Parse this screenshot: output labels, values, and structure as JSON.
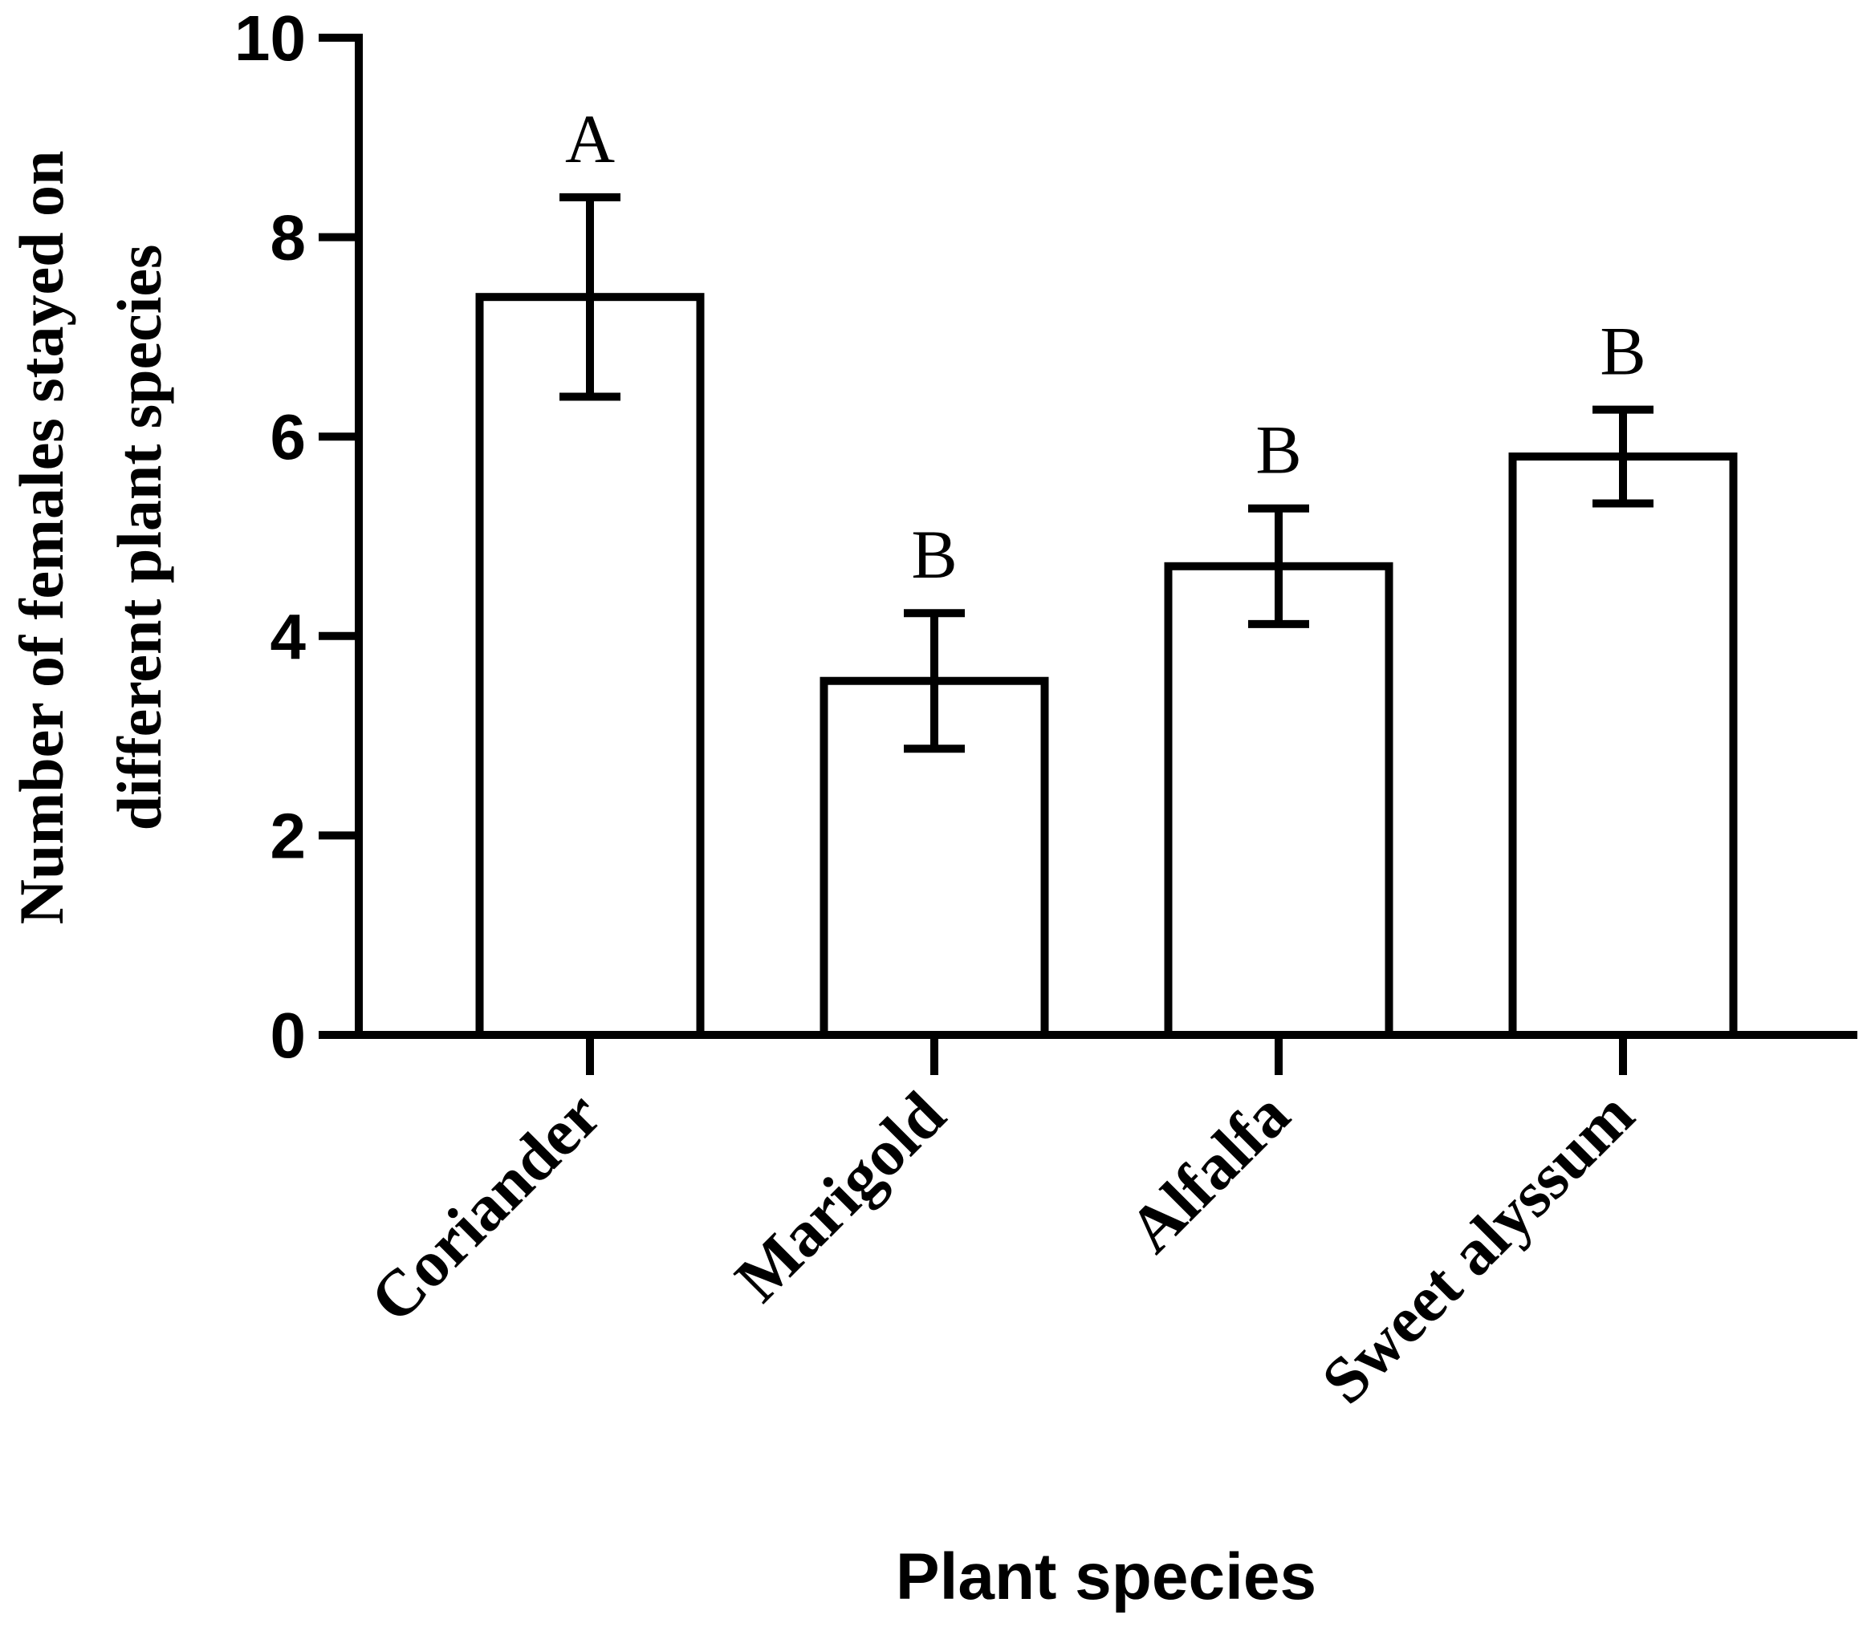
{
  "chart_data": {
    "type": "bar",
    "title": "",
    "xlabel": "Plant species",
    "ylabel_lines": [
      "Number of females stayed on",
      "different plant species"
    ],
    "categories": [
      "Coriander",
      "Marigold",
      "Alfalfa",
      "Sweet alyssum"
    ],
    "values": [
      7.4,
      3.55,
      4.7,
      5.8
    ],
    "errors": [
      1.0,
      0.68,
      0.58,
      0.47
    ],
    "significance_letters": [
      "A",
      "B",
      "B",
      "B"
    ],
    "ylim": [
      0,
      10
    ],
    "yticks": [
      0,
      2,
      4,
      6,
      8,
      10
    ],
    "ytick_labels": [
      "0",
      "2",
      "4",
      "6",
      "8",
      "10"
    ],
    "grid": false,
    "colors": {
      "bar_fill": "#ffffff",
      "stroke": "#000000"
    }
  }
}
